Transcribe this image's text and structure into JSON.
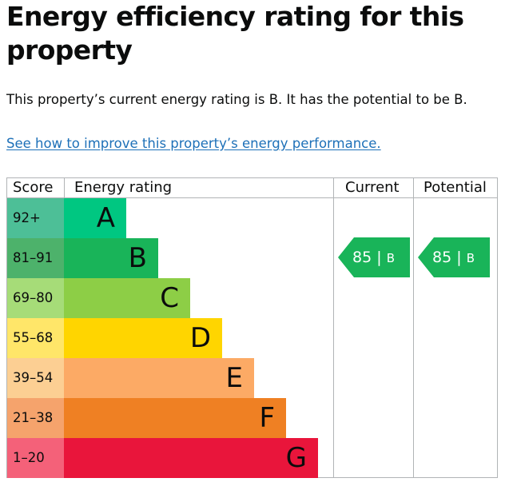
{
  "page": {
    "title": "Energy efficiency rating for this property",
    "summary": "This property’s current energy rating is B. It has the potential to be B.",
    "improve_link": "See how to improve this property’s energy performance."
  },
  "table": {
    "headers": {
      "score": "Score",
      "rating": "Energy rating",
      "current": "Current",
      "potential": "Potential"
    },
    "bands": [
      {
        "score": "92+",
        "letter": "A",
        "score_color": "#4dbf97",
        "bar_color": "#00c781"
      },
      {
        "score": "81–91",
        "letter": "B",
        "score_color": "#4db26b",
        "bar_color": "#19b459"
      },
      {
        "score": "69–80",
        "letter": "C",
        "score_color": "#a6dc78",
        "bar_color": "#8dce46"
      },
      {
        "score": "55–68",
        "letter": "D",
        "score_color": "#ffe669",
        "bar_color": "#ffd500"
      },
      {
        "score": "39–54",
        "letter": "E",
        "score_color": "#fccf93",
        "bar_color": "#fcaa65"
      },
      {
        "score": "21–38",
        "letter": "F",
        "score_color": "#f5a36c",
        "bar_color": "#ef8023"
      },
      {
        "score": "1–20",
        "letter": "G",
        "score_color": "#f46179",
        "bar_color": "#e9153b"
      }
    ],
    "current": {
      "value": "85",
      "separator": "|",
      "letter": "B",
      "color": "#19b459"
    },
    "potential": {
      "value": "85",
      "separator": "|",
      "letter": "B",
      "color": "#19b459"
    }
  }
}
